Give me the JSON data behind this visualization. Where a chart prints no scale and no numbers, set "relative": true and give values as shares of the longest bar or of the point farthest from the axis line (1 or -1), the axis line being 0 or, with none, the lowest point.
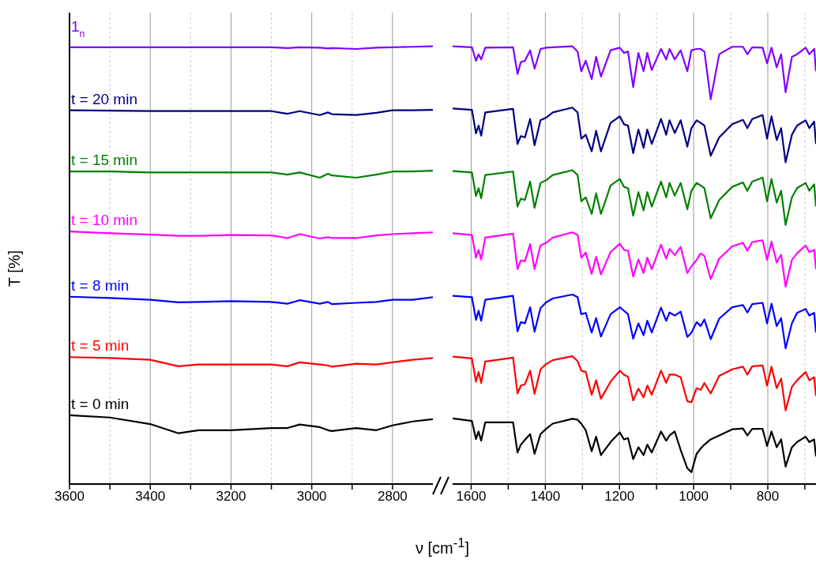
{
  "chart_data": [
    {
      "type": "line",
      "ylabel": "T [%]",
      "xlabel": "ν [cm$^{-1}$]",
      "relative": true,
      "grid": "x",
      "tick_labels": "x",
      "x": [
        3600,
        3500,
        3400,
        3330,
        3280,
        3200,
        3100,
        3060,
        3030,
        2980,
        2960,
        2950,
        2890,
        2840,
        2800,
        2750,
        2700
      ],
      "xlim": [
        3600,
        2700
      ],
      "xticks": [
        3600,
        {
          "value": 3500,
          "label": null
        },
        3400,
        {
          "value": 3300,
          "label": null
        },
        3200,
        {
          "value": 3100,
          "label": null
        },
        3000,
        {
          "value": 2900,
          "label": null
        },
        2800
      ],
      "series": [
        {
          "name": "1$_{n}$",
          "color": "#8000ff",
          "values": [
            0.998,
            0.998,
            0.998,
            0.998,
            0.998,
            0.998,
            0.998,
            0.996,
            0.998,
            0.997,
            0.995,
            0.996,
            0.994,
            0.997,
            0.998,
            0.999,
            1.0
          ]
        },
        {
          "name": "t = 20 min",
          "color": "#000080",
          "values": [
            0.854,
            0.853,
            0.852,
            0.852,
            0.852,
            0.852,
            0.852,
            0.846,
            0.852,
            0.843,
            0.849,
            0.845,
            0.843,
            0.848,
            0.854,
            0.854,
            0.855
          ]
        },
        {
          "name": "t = 15 min",
          "color": "#008000",
          "values": [
            0.714,
            0.714,
            0.712,
            0.712,
            0.712,
            0.712,
            0.712,
            0.707,
            0.712,
            0.7,
            0.709,
            0.705,
            0.7,
            0.707,
            0.714,
            0.714,
            0.716
          ]
        },
        {
          "name": "t = 10 min",
          "color": "#ff00ff",
          "values": [
            0.577,
            0.573,
            0.57,
            0.567,
            0.567,
            0.569,
            0.568,
            0.562,
            0.571,
            0.561,
            0.564,
            0.562,
            0.562,
            0.568,
            0.571,
            0.573,
            0.575
          ]
        },
        {
          "name": "t = 8 min",
          "color": "#0000ff",
          "values": [
            0.428,
            0.425,
            0.421,
            0.415,
            0.416,
            0.418,
            0.416,
            0.412,
            0.42,
            0.412,
            0.416,
            0.411,
            0.414,
            0.416,
            0.421,
            0.421,
            0.427
          ]
        },
        {
          "name": "t = 5 min",
          "color": "#ff0000",
          "values": [
            0.29,
            0.288,
            0.284,
            0.269,
            0.273,
            0.273,
            0.273,
            0.269,
            0.278,
            0.273,
            0.271,
            0.268,
            0.275,
            0.273,
            0.278,
            0.284,
            0.288
          ]
        },
        {
          "name": "t = 0 min",
          "color": "#000000",
          "values": [
            0.157,
            0.152,
            0.137,
            0.116,
            0.123,
            0.123,
            0.128,
            0.128,
            0.136,
            0.13,
            0.123,
            0.121,
            0.128,
            0.123,
            0.134,
            0.143,
            0.148
          ]
        }
      ]
    },
    {
      "type": "line",
      "relative": true,
      "grid": "x",
      "tick_labels": "x",
      "x": [
        1650,
        1598,
        1587,
        1580,
        1573,
        1562,
        1487,
        1475,
        1466,
        1455,
        1441,
        1429,
        1413,
        1398,
        1380,
        1327,
        1313,
        1303,
        1291,
        1275,
        1263,
        1250,
        1224,
        1199,
        1188,
        1177,
        1163,
        1149,
        1135,
        1125,
        1113,
        1088,
        1074,
        1065,
        1051,
        1035,
        1017,
        1006,
        992,
        981,
        971,
        954,
        931,
        896,
        867,
        855,
        842,
        814,
        802,
        790,
        776,
        764,
        752,
        735,
        721,
        698,
        688,
        675,
        670
      ],
      "xlim": [
        1650,
        670
      ],
      "xticks": [
        1600,
        {
          "value": 1500,
          "label": null
        },
        1400,
        {
          "value": 1300,
          "label": null
        },
        1200,
        {
          "value": 1100,
          "label": null
        },
        1000,
        {
          "value": 900,
          "label": null
        },
        800,
        {
          "value": 700,
          "label": null
        }
      ],
      "series": [
        {
          "color": "#8000ff",
          "values": [
            1.0,
            0.998,
            0.967,
            0.982,
            0.97,
            0.997,
            0.998,
            0.937,
            0.964,
            0.967,
            0.991,
            0.949,
            0.994,
            0.997,
            0.998,
            1.0,
            0.988,
            0.943,
            0.967,
            0.925,
            0.976,
            0.931,
            0.991,
            0.997,
            0.985,
            0.988,
            0.907,
            0.985,
            0.943,
            0.985,
            0.946,
            0.994,
            0.97,
            0.994,
            0.97,
            0.991,
            0.943,
            0.991,
            0.994,
            0.994,
            0.988,
            0.879,
            0.982,
            0.999,
            0.999,
            0.982,
            0.998,
            0.997,
            0.961,
            0.997,
            0.952,
            0.982,
            0.895,
            0.976,
            0.982,
            0.997,
            0.982,
            0.994,
            0.943
          ]
        },
        {
          "color": "#000080",
          "values": [
            0.858,
            0.855,
            0.801,
            0.819,
            0.796,
            0.849,
            0.857,
            0.777,
            0.795,
            0.792,
            0.834,
            0.774,
            0.831,
            0.837,
            0.849,
            0.86,
            0.849,
            0.789,
            0.798,
            0.76,
            0.807,
            0.76,
            0.825,
            0.84,
            0.822,
            0.819,
            0.756,
            0.81,
            0.768,
            0.81,
            0.777,
            0.834,
            0.798,
            0.831,
            0.802,
            0.831,
            0.771,
            0.813,
            0.831,
            0.825,
            0.819,
            0.75,
            0.792,
            0.822,
            0.832,
            0.813,
            0.834,
            0.843,
            0.789,
            0.84,
            0.786,
            0.813,
            0.735,
            0.798,
            0.819,
            0.831,
            0.813,
            0.828,
            0.777
          ]
        },
        {
          "color": "#008000",
          "values": [
            0.715,
            0.712,
            0.658,
            0.676,
            0.653,
            0.706,
            0.714,
            0.634,
            0.652,
            0.649,
            0.691,
            0.631,
            0.688,
            0.694,
            0.706,
            0.717,
            0.706,
            0.646,
            0.655,
            0.617,
            0.664,
            0.617,
            0.682,
            0.697,
            0.679,
            0.676,
            0.613,
            0.667,
            0.625,
            0.667,
            0.634,
            0.691,
            0.655,
            0.688,
            0.659,
            0.688,
            0.628,
            0.67,
            0.688,
            0.682,
            0.676,
            0.607,
            0.649,
            0.679,
            0.689,
            0.67,
            0.691,
            0.7,
            0.646,
            0.697,
            0.643,
            0.67,
            0.592,
            0.655,
            0.676,
            0.688,
            0.67,
            0.685,
            0.634
          ]
        },
        {
          "color": "#ff00ff",
          "values": [
            0.573,
            0.569,
            0.517,
            0.535,
            0.513,
            0.563,
            0.572,
            0.491,
            0.511,
            0.509,
            0.548,
            0.491,
            0.545,
            0.551,
            0.563,
            0.575,
            0.569,
            0.517,
            0.529,
            0.48,
            0.519,
            0.479,
            0.53,
            0.549,
            0.535,
            0.533,
            0.474,
            0.513,
            0.482,
            0.517,
            0.491,
            0.547,
            0.515,
            0.537,
            0.523,
            0.542,
            0.482,
            0.497,
            0.512,
            0.527,
            0.521,
            0.468,
            0.515,
            0.543,
            0.551,
            0.533,
            0.553,
            0.557,
            0.512,
            0.554,
            0.506,
            0.524,
            0.451,
            0.512,
            0.527,
            0.545,
            0.53,
            0.535,
            0.491
          ]
        },
        {
          "color": "#0000ff",
          "values": [
            0.43,
            0.427,
            0.375,
            0.396,
            0.373,
            0.421,
            0.43,
            0.349,
            0.37,
            0.367,
            0.404,
            0.348,
            0.402,
            0.415,
            0.424,
            0.433,
            0.427,
            0.388,
            0.391,
            0.346,
            0.379,
            0.337,
            0.388,
            0.404,
            0.396,
            0.388,
            0.332,
            0.367,
            0.34,
            0.373,
            0.346,
            0.403,
            0.373,
            0.392,
            0.385,
            0.394,
            0.336,
            0.346,
            0.37,
            0.361,
            0.376,
            0.331,
            0.378,
            0.404,
            0.409,
            0.392,
            0.411,
            0.414,
            0.367,
            0.412,
            0.361,
            0.379,
            0.31,
            0.367,
            0.391,
            0.4,
            0.385,
            0.391,
            0.346
          ]
        },
        {
          "color": "#ff0000",
          "values": [
            0.291,
            0.287,
            0.234,
            0.256,
            0.231,
            0.28,
            0.289,
            0.207,
            0.225,
            0.228,
            0.259,
            0.206,
            0.262,
            0.274,
            0.283,
            0.292,
            0.281,
            0.259,
            0.256,
            0.204,
            0.237,
            0.195,
            0.234,
            0.259,
            0.25,
            0.245,
            0.191,
            0.218,
            0.198,
            0.225,
            0.204,
            0.259,
            0.231,
            0.25,
            0.25,
            0.244,
            0.189,
            0.187,
            0.219,
            0.215,
            0.231,
            0.207,
            0.247,
            0.262,
            0.268,
            0.25,
            0.269,
            0.271,
            0.225,
            0.268,
            0.219,
            0.241,
            0.168,
            0.222,
            0.237,
            0.256,
            0.237,
            0.244,
            0.201
          ]
        },
        {
          "color": "#000000",
          "values": [
            0.15,
            0.144,
            0.103,
            0.12,
            0.099,
            0.141,
            0.141,
            0.072,
            0.09,
            0.101,
            0.114,
            0.069,
            0.114,
            0.126,
            0.138,
            0.149,
            0.147,
            0.138,
            0.123,
            0.075,
            0.108,
            0.066,
            0.096,
            0.118,
            0.102,
            0.105,
            0.057,
            0.084,
            0.066,
            0.09,
            0.072,
            0.12,
            0.099,
            0.111,
            0.12,
            0.078,
            0.036,
            0.027,
            0.069,
            0.081,
            0.09,
            0.102,
            0.111,
            0.125,
            0.127,
            0.111,
            0.126,
            0.126,
            0.087,
            0.12,
            0.084,
            0.102,
            0.04,
            0.084,
            0.096,
            0.108,
            0.096,
            0.102,
            0.063
          ]
        }
      ]
    }
  ]
}
